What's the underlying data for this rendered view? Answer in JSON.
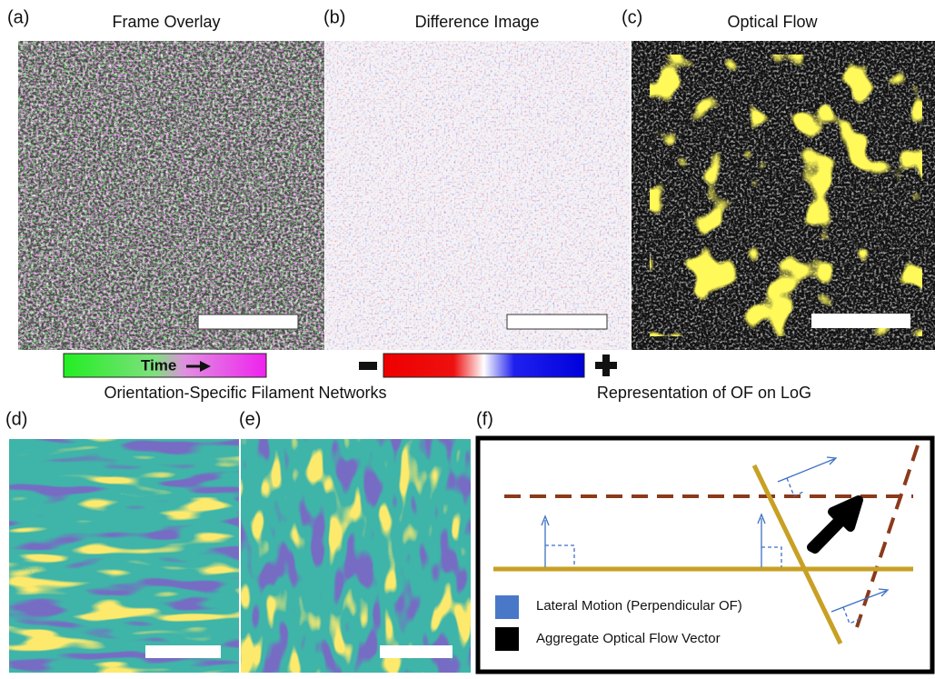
{
  "panels": [
    {
      "label": "(a)",
      "title": "Frame Overlay"
    },
    {
      "label": "(b)",
      "title": "Difference Image"
    },
    {
      "label": "(c)",
      "title": "Optical Flow"
    },
    {
      "label": "(d)"
    },
    {
      "label": "(e)"
    },
    {
      "label": "(f)"
    }
  ],
  "colorbar_time": "Time",
  "captions": [
    "Orientation-Specific Filament Networks",
    "Representation of OF on LoG"
  ],
  "legend": [
    "Lateral Motion (Perpendicular OF)",
    "Aggregate Optical Flow Vector"
  ]
}
